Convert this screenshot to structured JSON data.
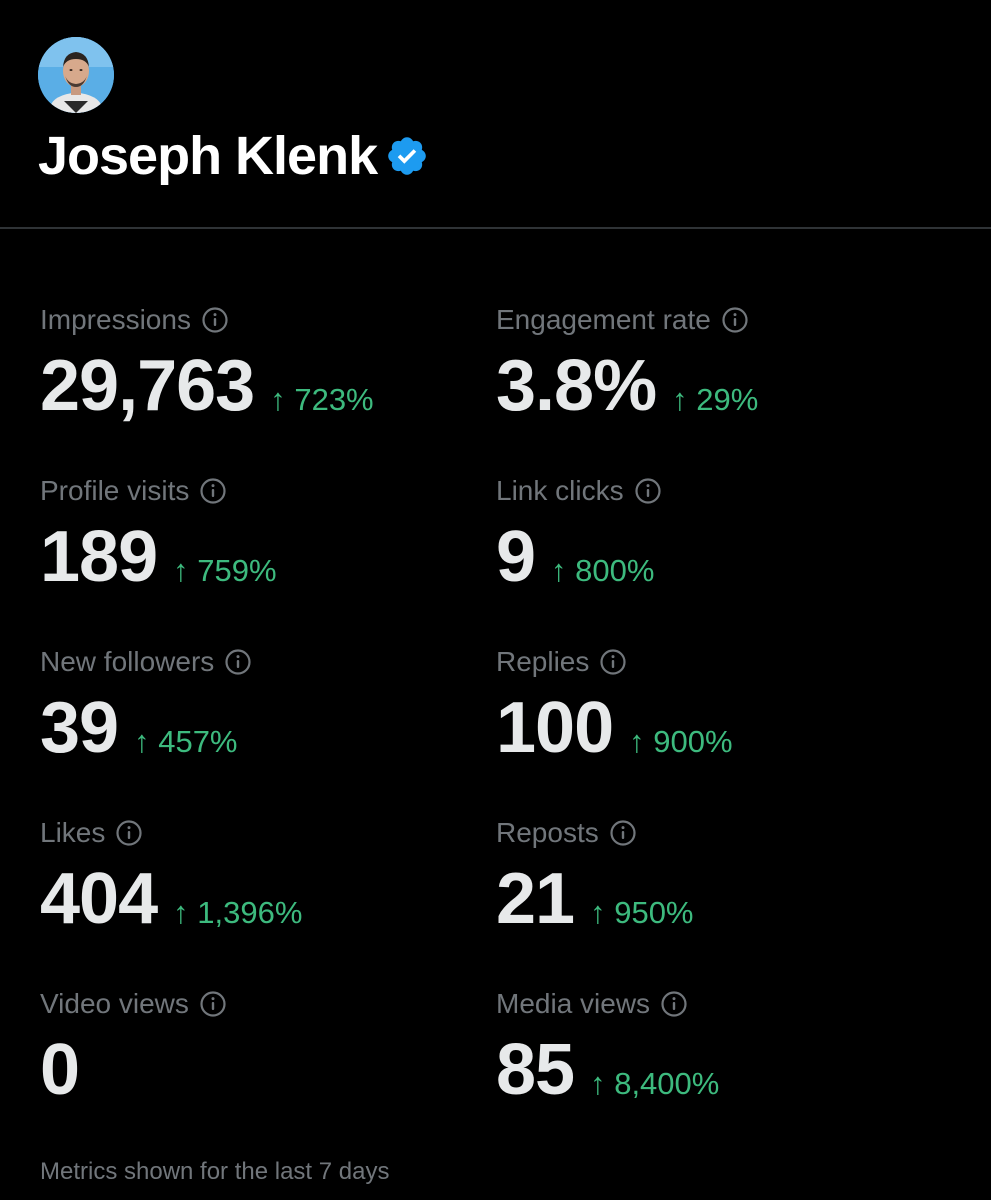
{
  "profile": {
    "name": "Joseph Klenk",
    "avatar_icon": "user-avatar",
    "verified_icon": "verified-badge-icon",
    "verified_color": "#1d9bf0"
  },
  "colors": {
    "background": "#000000",
    "label": "#71767b",
    "value": "#e7e9ea",
    "positive_change": "#3dba7e",
    "divider": "#2f3336"
  },
  "metrics": [
    {
      "label": "Impressions",
      "value": "29,763",
      "change": "↑ 723%"
    },
    {
      "label": "Engagement rate",
      "value": "3.8%",
      "change": "↑ 29%"
    },
    {
      "label": "Profile visits",
      "value": "189",
      "change": "↑ 759%"
    },
    {
      "label": "Link clicks",
      "value": "9",
      "change": "↑ 800%"
    },
    {
      "label": "New followers",
      "value": "39",
      "change": "↑ 457%"
    },
    {
      "label": "Replies",
      "value": "100",
      "change": "↑ 900%"
    },
    {
      "label": "Likes",
      "value": "404",
      "change": "↑ 1,396%"
    },
    {
      "label": "Reposts",
      "value": "21",
      "change": "↑ 950%"
    },
    {
      "label": "Video views",
      "value": "0",
      "change": ""
    },
    {
      "label": "Media views",
      "value": "85",
      "change": "↑ 8,400%"
    }
  ],
  "footer": {
    "note": "Metrics shown for the last 7 days"
  }
}
